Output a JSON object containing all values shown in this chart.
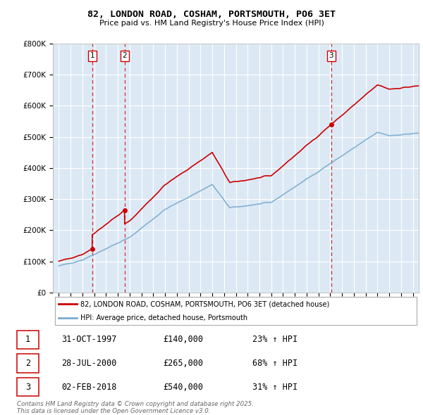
{
  "title_line1": "82, LONDON ROAD, COSHAM, PORTSMOUTH, PO6 3ET",
  "title_line2": "Price paid vs. HM Land Registry's House Price Index (HPI)",
  "sale_dates_num": [
    1997.83,
    2000.57,
    2018.09
  ],
  "sale_prices": [
    140000,
    265000,
    540000
  ],
  "sale_labels": [
    "1",
    "2",
    "3"
  ],
  "legend_line1": "82, LONDON ROAD, COSHAM, PORTSMOUTH, PO6 3ET (detached house)",
  "legend_line2": "HPI: Average price, detached house, Portsmouth",
  "table_rows": [
    [
      "1",
      "31-OCT-1997",
      "£140,000",
      "23% ↑ HPI"
    ],
    [
      "2",
      "28-JUL-2000",
      "£265,000",
      "68% ↑ HPI"
    ],
    [
      "3",
      "02-FEB-2018",
      "£540,000",
      "31% ↑ HPI"
    ]
  ],
  "footer": "Contains HM Land Registry data © Crown copyright and database right 2025.\nThis data is licensed under the Open Government Licence v3.0.",
  "line_color_red": "#cc0000",
  "line_color_blue": "#7aabcf",
  "bg_color": "#dce9f5",
  "ylim": [
    0,
    800000
  ],
  "xlim_start": 1994.5,
  "xlim_end": 2025.5
}
